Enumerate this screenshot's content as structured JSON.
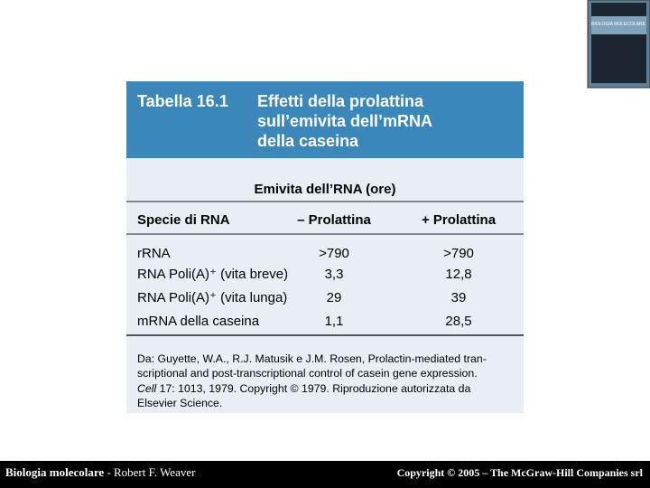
{
  "cover": {
    "title": "BIOLOGIA MOLECOLARE"
  },
  "header": {
    "label": "Tabella 16.1",
    "title_lines": [
      "Effetti della prolattina",
      "sull’emivita dell’mRNA",
      "della caseina"
    ]
  },
  "table": {
    "group_header": "Emivita dell’RNA (ore)",
    "columns": [
      "Specie di RNA",
      "– Prolattina",
      "+ Prolattina"
    ],
    "rows": [
      [
        "rRNA",
        ">790",
        ">790"
      ],
      [
        "RNA Poli(A)⁺ (vita breve)",
        "3,3",
        "12,8"
      ],
      [
        "RNA Poli(A)⁺ (vita lunga)",
        "29",
        "39"
      ],
      [
        "mRNA della caseina",
        "1,1",
        "28,5"
      ]
    ]
  },
  "source": {
    "lines": [
      "Da: Guyette, W.A., R.J. Matusik e J.M. Rosen, Prolactin-mediated tran-",
      "scriptional and post-transcriptional control of casein gene expression."
    ],
    "journal": "Cell",
    "line3_rest": " 17: 1013, 1979. Copyright © 1979. Riproduzione autorizzata da",
    "line4": "Elsevier Science."
  },
  "footer": {
    "left_title": "Biologia molecolare",
    "left_author": " - Robert F. Weaver",
    "right": "Copyright © 2005 – The McGraw-Hill Companies srl"
  }
}
